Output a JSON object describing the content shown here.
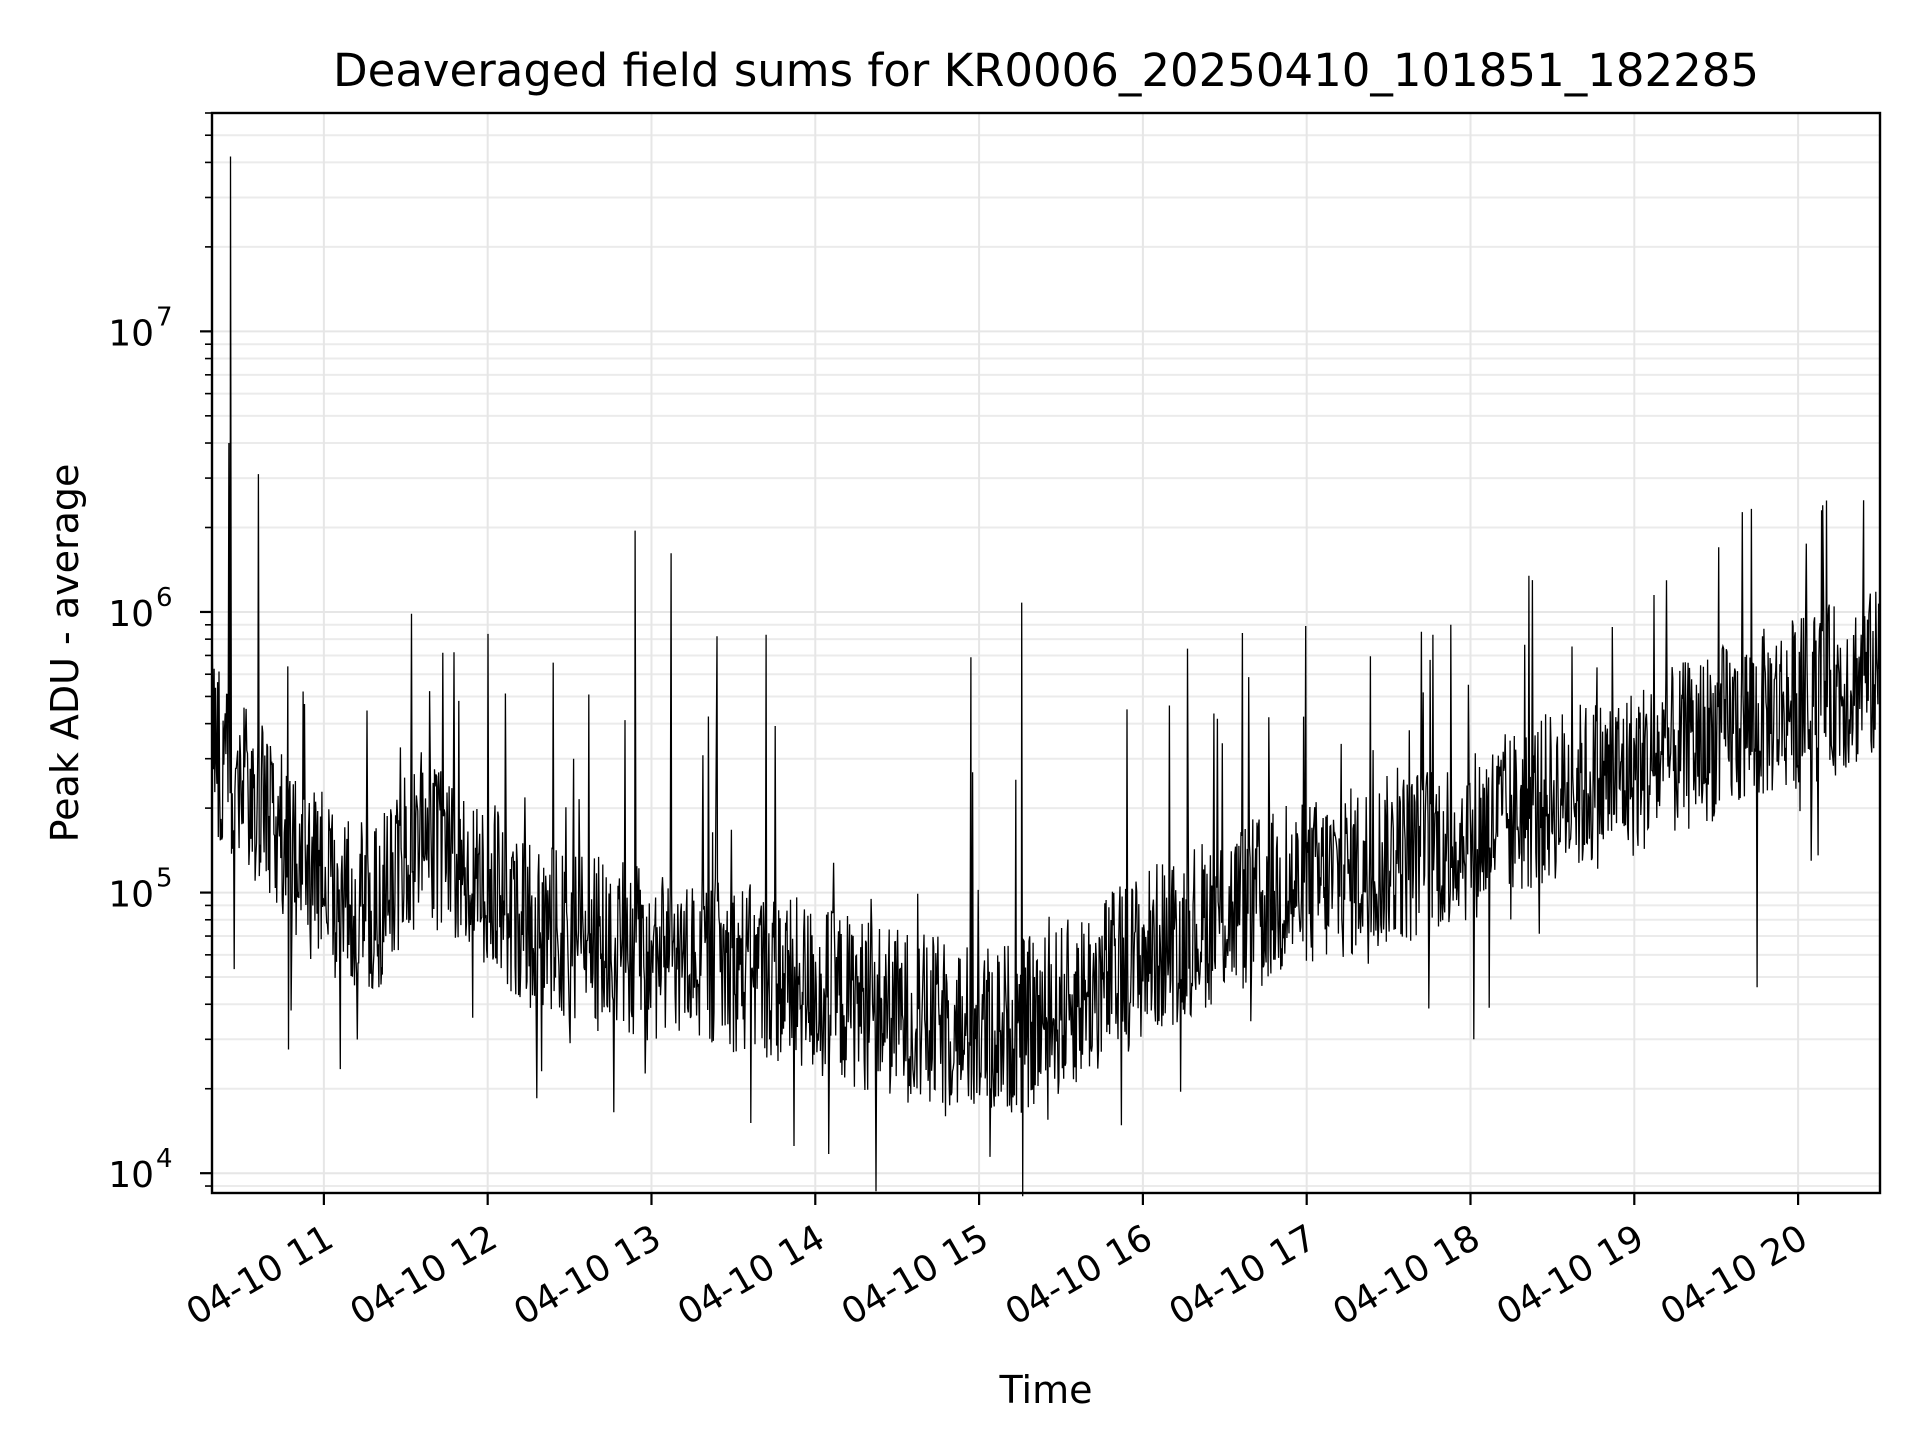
{
  "chart_data": {
    "type": "line",
    "title": "Deaveraged field sums for KR0006_20250410_101851_182285",
    "xlabel": "Time",
    "ylabel": "Peak ADU - average",
    "yscale": "log",
    "ylim": [
      8500,
      60000000
    ],
    "xlim_hours": [
      10.317,
      20.5
    ],
    "grid": true,
    "x_ticks": [
      {
        "hour": 11,
        "label": "04-10 11"
      },
      {
        "hour": 12,
        "label": "04-10 12"
      },
      {
        "hour": 13,
        "label": "04-10 13"
      },
      {
        "hour": 14,
        "label": "04-10 14"
      },
      {
        "hour": 15,
        "label": "04-10 15"
      },
      {
        "hour": 16,
        "label": "04-10 16"
      },
      {
        "hour": 17,
        "label": "04-10 17"
      },
      {
        "hour": 18,
        "label": "04-10 18"
      },
      {
        "hour": 19,
        "label": "04-10 19"
      },
      {
        "hour": 20,
        "label": "04-10 20"
      }
    ],
    "y_ticks": [
      {
        "value": 10000,
        "base": "10",
        "exp": "4"
      },
      {
        "value": 100000,
        "base": "10",
        "exp": "5"
      },
      {
        "value": 1000000,
        "base": "10",
        "exp": "6"
      },
      {
        "value": 10000000,
        "base": "10",
        "exp": "7"
      }
    ],
    "baseline_trend": [
      {
        "hour": 10.32,
        "value": 330000
      },
      {
        "hour": 10.5,
        "value": 250000
      },
      {
        "hour": 10.75,
        "value": 160000
      },
      {
        "hour": 11.0,
        "value": 100000
      },
      {
        "hour": 11.3,
        "value": 85000
      },
      {
        "hour": 11.6,
        "value": 160000
      },
      {
        "hour": 11.9,
        "value": 120000
      },
      {
        "hour": 12.3,
        "value": 75000
      },
      {
        "hour": 13.0,
        "value": 60000
      },
      {
        "hour": 13.5,
        "value": 55000
      },
      {
        "hour": 14.0,
        "value": 45000
      },
      {
        "hour": 14.5,
        "value": 37000
      },
      {
        "hour": 15.0,
        "value": 32000
      },
      {
        "hour": 15.4,
        "value": 35000
      },
      {
        "hour": 16.0,
        "value": 60000
      },
      {
        "hour": 16.5,
        "value": 85000
      },
      {
        "hour": 17.0,
        "value": 105000
      },
      {
        "hour": 17.5,
        "value": 130000
      },
      {
        "hour": 18.0,
        "value": 160000
      },
      {
        "hour": 18.5,
        "value": 220000
      },
      {
        "hour": 19.0,
        "value": 270000
      },
      {
        "hour": 19.5,
        "value": 370000
      },
      {
        "hour": 20.0,
        "value": 480000
      },
      {
        "hour": 20.5,
        "value": 600000
      }
    ],
    "spikes": [
      {
        "hour": 10.43,
        "value": 42000000
      },
      {
        "hour": 10.42,
        "value": 4000000
      },
      {
        "hour": 10.6,
        "value": 3100000
      },
      {
        "hour": 12.9,
        "value": 1950000
      },
      {
        "hour": 13.12,
        "value": 1620000
      },
      {
        "hour": 15.26,
        "value": 1080000
      },
      {
        "hour": 20.15,
        "value": 2400000
      },
      {
        "hour": 20.4,
        "value": 2500000
      },
      {
        "hour": 10.78,
        "value": 640000
      },
      {
        "hour": 12.4,
        "value": 660000
      },
      {
        "hour": 13.4,
        "value": 820000
      },
      {
        "hour": 13.7,
        "value": 830000
      },
      {
        "hour": 14.95,
        "value": 690000
      },
      {
        "hour": 17.7,
        "value": 850000
      },
      {
        "hour": 17.88,
        "value": 900000
      },
      {
        "hour": 20.02,
        "value": 950000
      }
    ],
    "dips": [
      {
        "hour": 13.87,
        "value": 12500
      },
      {
        "hour": 15.42,
        "value": 15500
      },
      {
        "hour": 12.77,
        "value": 16500
      },
      {
        "hour": 12.3,
        "value": 18500
      },
      {
        "hour": 14.7,
        "value": 18000
      },
      {
        "hour": 11.1,
        "value": 23500
      },
      {
        "hour": 16.23,
        "value": 19500
      },
      {
        "hour": 18.02,
        "value": 30000
      },
      {
        "hour": 19.75,
        "value": 46000
      },
      {
        "hour": 10.8,
        "value": 38000
      }
    ]
  }
}
